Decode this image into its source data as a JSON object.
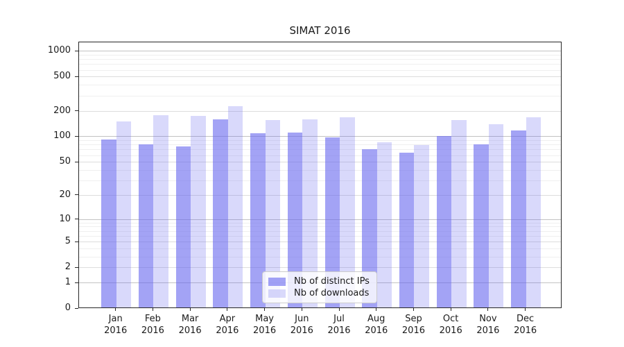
{
  "chart_data": {
    "type": "bar",
    "title": "SIMAT 2016",
    "categories": [
      "Jan 2016",
      "Feb 2016",
      "Mar 2016",
      "Apr 2016",
      "May 2016",
      "Jun 2016",
      "Jul 2016",
      "Aug 2016",
      "Sep 2016",
      "Oct 2016",
      "Nov 2016",
      "Dec 2016"
    ],
    "series": [
      {
        "name": "Nb of distinct IPs",
        "color": "#6666ee",
        "alpha": 0.6,
        "values": [
          92,
          80,
          76,
          157,
          108,
          111,
          97,
          70,
          64,
          101,
          80,
          117
        ]
      },
      {
        "name": "Nb of downloads",
        "color": "#6666ee",
        "alpha": 0.25,
        "values": [
          150,
          176,
          174,
          228,
          154,
          159,
          168,
          85,
          79,
          155,
          139,
          167
        ]
      }
    ],
    "xlabel": "",
    "ylabel": "",
    "yscale": "log1p",
    "ylim": [
      0,
      1000
    ],
    "yticks": [
      0,
      1,
      2,
      5,
      10,
      20,
      50,
      100,
      200,
      500,
      1000
    ],
    "grid": true,
    "legend_position": "lower center",
    "colors": {
      "axis": "#262626",
      "grid_major": "#c2c2c2",
      "grid_mid": "#dddddd",
      "grid_minor": "#efefef"
    }
  }
}
